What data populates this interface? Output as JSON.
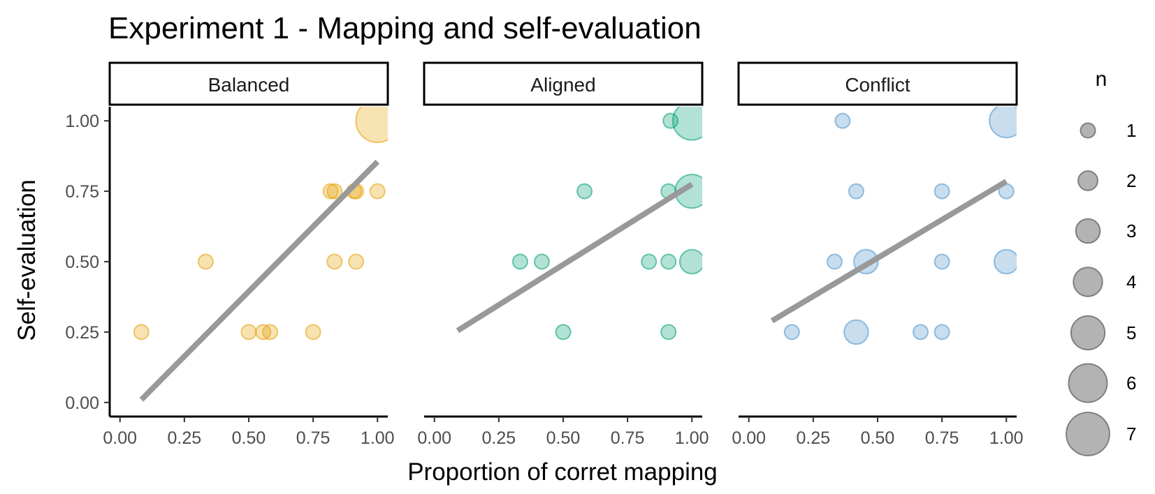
{
  "chart_data": {
    "type": "scatter",
    "title": "Experiment 1 - Mapping and self-evaluation",
    "xlabel": "Proportion of corret mapping",
    "ylabel": "Self-evaluation",
    "xlim": [
      -0.04,
      1.04
    ],
    "ylim": [
      -0.05,
      1.05
    ],
    "x_ticks": [
      "0.00",
      "0.25",
      "0.50",
      "0.75",
      "1.00"
    ],
    "y_ticks": [
      "0.00",
      "0.25",
      "0.50",
      "0.75",
      "1.00"
    ],
    "grid": false,
    "legend": {
      "title": "n",
      "position": "right",
      "sizes": [
        1,
        2,
        3,
        4,
        5,
        6,
        7
      ],
      "labels": [
        "1",
        "2",
        "3",
        "4",
        "5",
        "6",
        "7"
      ],
      "color": "#999999"
    },
    "trend_color": "#999999",
    "panels": [
      {
        "name": "Balanced",
        "color": "#E69F00",
        "points": [
          {
            "x": 0.083,
            "y": 0.25,
            "n": 1
          },
          {
            "x": 0.333,
            "y": 0.5,
            "n": 1
          },
          {
            "x": 0.5,
            "y": 0.25,
            "n": 1
          },
          {
            "x": 0.556,
            "y": 0.25,
            "n": 1
          },
          {
            "x": 0.583,
            "y": 0.25,
            "n": 1
          },
          {
            "x": 0.75,
            "y": 0.25,
            "n": 1
          },
          {
            "x": 0.818,
            "y": 0.75,
            "n": 1
          },
          {
            "x": 0.833,
            "y": 0.75,
            "n": 1
          },
          {
            "x": 0.833,
            "y": 0.5,
            "n": 1
          },
          {
            "x": 0.909,
            "y": 0.75,
            "n": 1
          },
          {
            "x": 0.917,
            "y": 0.75,
            "n": 1
          },
          {
            "x": 0.917,
            "y": 0.5,
            "n": 1
          },
          {
            "x": 1.0,
            "y": 0.75,
            "n": 1
          },
          {
            "x": 1.0,
            "y": 1.0,
            "n": 7
          }
        ],
        "trend": {
          "x0": 0.083,
          "y0": 0.01,
          "x1": 1.0,
          "y1": 0.855
        }
      },
      {
        "name": "Aligned",
        "color": "#009E73",
        "points": [
          {
            "x": 0.333,
            "y": 0.5,
            "n": 1
          },
          {
            "x": 0.417,
            "y": 0.5,
            "n": 1
          },
          {
            "x": 0.5,
            "y": 0.25,
            "n": 1
          },
          {
            "x": 0.583,
            "y": 0.75,
            "n": 1
          },
          {
            "x": 0.833,
            "y": 0.5,
            "n": 1
          },
          {
            "x": 0.909,
            "y": 0.25,
            "n": 1
          },
          {
            "x": 0.909,
            "y": 0.5,
            "n": 1
          },
          {
            "x": 0.909,
            "y": 0.75,
            "n": 1
          },
          {
            "x": 0.917,
            "y": 1.0,
            "n": 1
          },
          {
            "x": 1.0,
            "y": 0.5,
            "n": 3
          },
          {
            "x": 1.0,
            "y": 0.75,
            "n": 5
          },
          {
            "x": 1.0,
            "y": 1.0,
            "n": 6
          }
        ],
        "trend": {
          "x0": 0.09,
          "y0": 0.255,
          "x1": 1.0,
          "y1": 0.775
        }
      },
      {
        "name": "Conflict",
        "color": "#4A90C8",
        "points": [
          {
            "x": 0.167,
            "y": 0.25,
            "n": 1
          },
          {
            "x": 0.333,
            "y": 0.5,
            "n": 1
          },
          {
            "x": 0.364,
            "y": 1.0,
            "n": 1
          },
          {
            "x": 0.417,
            "y": 0.75,
            "n": 1
          },
          {
            "x": 0.417,
            "y": 0.25,
            "n": 3
          },
          {
            "x": 0.455,
            "y": 0.5,
            "n": 3
          },
          {
            "x": 0.667,
            "y": 0.25,
            "n": 1
          },
          {
            "x": 0.75,
            "y": 0.25,
            "n": 1
          },
          {
            "x": 0.75,
            "y": 0.5,
            "n": 1
          },
          {
            "x": 0.75,
            "y": 0.75,
            "n": 1
          },
          {
            "x": 1.0,
            "y": 0.75,
            "n": 1
          },
          {
            "x": 1.0,
            "y": 0.5,
            "n": 3
          },
          {
            "x": 1.0,
            "y": 1.0,
            "n": 5
          }
        ],
        "trend": {
          "x0": 0.09,
          "y0": 0.29,
          "x1": 1.0,
          "y1": 0.785
        }
      }
    ]
  }
}
